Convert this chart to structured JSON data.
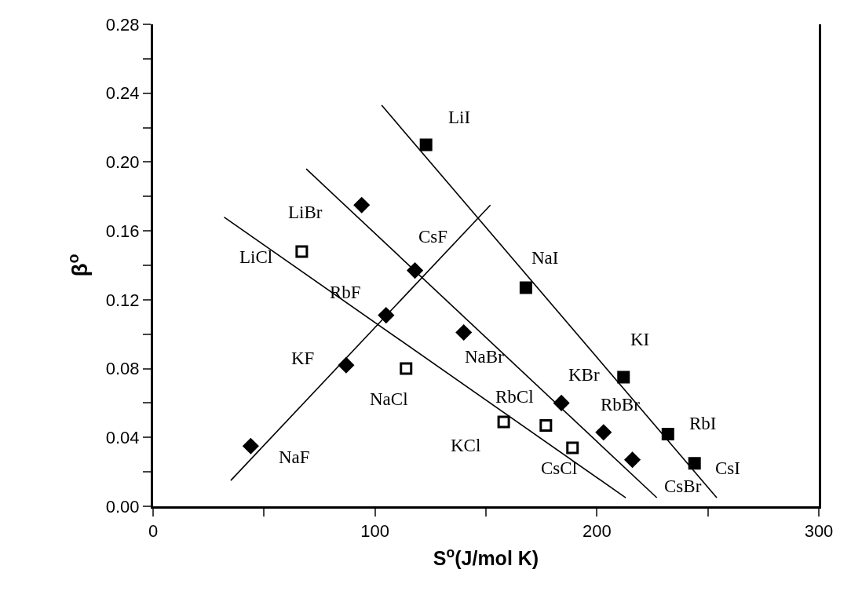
{
  "chart_data": {
    "type": "scatter",
    "xlabel": "S$^{o}$(J/mol K)",
    "ylabel": "β$^{o}$",
    "xlim": [
      0,
      300
    ],
    "ylim": [
      0,
      0.28
    ],
    "xticks": [
      0,
      {
        "value": 50,
        "label": null
      },
      100,
      {
        "value": 150,
        "label": null
      },
      200,
      {
        "value": 250,
        "label": null
      },
      300
    ],
    "yticks": [
      {
        "value": 0,
        "label": "0.00"
      },
      {
        "value": 0.02,
        "label": null
      },
      {
        "value": 0.04,
        "label": "0.04"
      },
      {
        "value": 0.06,
        "label": null
      },
      {
        "value": 0.08,
        "label": "0.08"
      },
      {
        "value": 0.1,
        "label": null
      },
      {
        "value": 0.12,
        "label": "0.12"
      },
      {
        "value": 0.14,
        "label": null
      },
      {
        "value": 0.16,
        "label": "0.16"
      },
      {
        "value": 0.18,
        "label": null
      },
      {
        "value": 0.2,
        "label": "0.20"
      },
      {
        "value": 0.22,
        "label": null
      },
      {
        "value": 0.24,
        "label": "0.24"
      },
      {
        "value": 0.26,
        "label": null
      },
      {
        "value": 0.28,
        "label": "0.28"
      }
    ],
    "series": [
      {
        "marker": "diamond",
        "color": "#000000",
        "x": [
          44,
          87,
          105,
          118
        ],
        "values": [
          0.035,
          0.082,
          0.111,
          0.137
        ]
      },
      {
        "marker": "square",
        "color": "#ffffff",
        "x": [
          67,
          114,
          158,
          177,
          189
        ],
        "values": [
          0.148,
          0.08,
          0.049,
          0.047,
          0.034
        ]
      },
      {
        "marker": "diamond",
        "color": "#000000",
        "x": [
          94,
          140,
          184,
          203,
          216
        ],
        "values": [
          0.175,
          0.101,
          0.06,
          0.043,
          0.027
        ]
      },
      {
        "marker": "square",
        "color": "#000000",
        "x": [
          123,
          168,
          212,
          232,
          244
        ],
        "values": [
          0.21,
          0.127,
          0.075,
          0.042,
          0.025
        ]
      },
      {
        "type": "line",
        "marker": "none",
        "color": "#000000",
        "x": [
          35,
          152
        ],
        "values": [
          0.015,
          0.175
        ]
      },
      {
        "type": "line",
        "marker": "none",
        "color": "#000000",
        "x": [
          32,
          213
        ],
        "values": [
          0.168,
          0.005
        ]
      },
      {
        "type": "line",
        "marker": "none",
        "color": "#000000",
        "x": [
          69,
          227
        ],
        "values": [
          0.196,
          0.005
        ]
      },
      {
        "type": "line",
        "marker": "none",
        "color": "#000000",
        "x": [
          103,
          254
        ],
        "values": [
          0.233,
          0.005
        ]
      }
    ],
    "annotations": [
      {
        "text": "NaF",
        "x": 44,
        "y": 0.035
      },
      {
        "text": "KF",
        "x": 87,
        "y": 0.082
      },
      {
        "text": "RbF",
        "x": 105,
        "y": 0.111
      },
      {
        "text": "CsF",
        "x": 118,
        "y": 0.137
      },
      {
        "text": "LiCl",
        "x": 67,
        "y": 0.148
      },
      {
        "text": "NaCl",
        "x": 114,
        "y": 0.08
      },
      {
        "text": "KCl",
        "x": 158,
        "y": 0.049
      },
      {
        "text": "RbCl",
        "x": 177,
        "y": 0.047
      },
      {
        "text": "CsCl",
        "x": 189,
        "y": 0.034
      },
      {
        "text": "LiBr",
        "x": 94,
        "y": 0.175
      },
      {
        "text": "NaBr",
        "x": 140,
        "y": 0.101
      },
      {
        "text": "KBr",
        "x": 184,
        "y": 0.06
      },
      {
        "text": "RbBr",
        "x": 203,
        "y": 0.043
      },
      {
        "text": "CsBr",
        "x": 216,
        "y": 0.027
      },
      {
        "text": "LiI",
        "x": 123,
        "y": 0.21
      },
      {
        "text": "NaI",
        "x": 168,
        "y": 0.127
      },
      {
        "text": "KI",
        "x": 212,
        "y": 0.075
      },
      {
        "text": "RbI",
        "x": 232,
        "y": 0.042
      },
      {
        "text": "CsI",
        "x": 244,
        "y": 0.025
      }
    ]
  }
}
